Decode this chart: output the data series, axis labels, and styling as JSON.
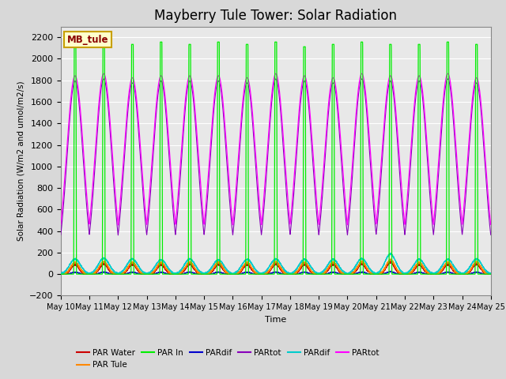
{
  "title": "Mayberry Tule Tower: Solar Radiation",
  "xlabel": "Time",
  "ylabel": "Solar Radiation (W/m2 and umol/m2/s)",
  "ylim": [
    -200,
    2300
  ],
  "yticks": [
    -200,
    0,
    200,
    400,
    600,
    800,
    1000,
    1200,
    1400,
    1600,
    1800,
    2000,
    2200
  ],
  "date_start": 10,
  "date_end": 25,
  "num_days": 15,
  "legend_box_label": "MB_tule",
  "legend_box_color": "#c8a000",
  "legend_box_bg": "#ffffcc",
  "plot_bg": "#e8e8e8",
  "grid_color": "#ffffff",
  "title_fontsize": 12,
  "series": [
    {
      "label": "PAR Water",
      "color": "#cc0000"
    },
    {
      "label": "PAR Tule",
      "color": "#ff8800"
    },
    {
      "label": "PAR In",
      "color": "#00ee00"
    },
    {
      "label": "PARdif",
      "color": "#0000cc"
    },
    {
      "label": "PARtot",
      "color": "#8800bb"
    },
    {
      "label": "PARdif",
      "color": "#00cccc"
    },
    {
      "label": "PARtot",
      "color": "#ff00ff"
    }
  ]
}
